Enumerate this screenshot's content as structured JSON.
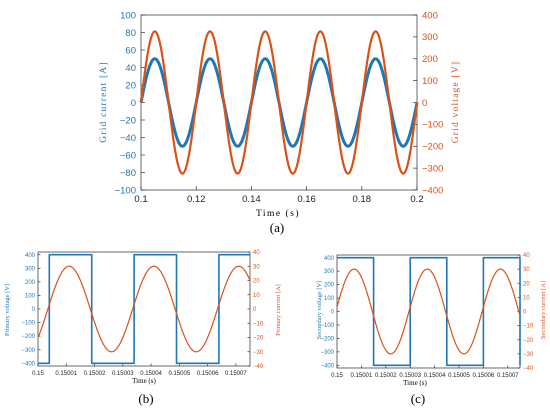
{
  "colors": {
    "current": "#1f77b4",
    "voltage": "#d95319",
    "axis": "#333333",
    "frame": "#444444"
  },
  "chart_data": [
    {
      "panel": "(a)",
      "type": "line",
      "xlabel": "Time (s)",
      "ylabel_left": "Grid current [A]",
      "ylabel_right": "Grid voltage [V]",
      "xlim": [
        0.1,
        0.2
      ],
      "ylim_left": [
        -100,
        100
      ],
      "ylim_right": [
        -400,
        400
      ],
      "xticks": [
        "0.1",
        "0.12",
        "0.14",
        "0.16",
        "0.18",
        "0.2"
      ],
      "yticks_left": [
        "100",
        "80",
        "60",
        "40",
        "20",
        "0",
        "−20",
        "−40",
        "−60",
        "−80",
        "−100"
      ],
      "yticks_right": [
        "400",
        "300",
        "200",
        "100",
        "0",
        "−100",
        "−200",
        "−300",
        "−400"
      ],
      "series": [
        {
          "axis": "left",
          "shape": "sine",
          "amplitude": 50,
          "frequency_hz": 50,
          "x_start": 0.1,
          "x_end": 0.2,
          "color": "#1f77b4"
        },
        {
          "axis": "right",
          "shape": "sine",
          "amplitude": 325,
          "frequency_hz": 50,
          "x_start": 0.1,
          "x_end": 0.2,
          "color": "#d95319"
        }
      ]
    },
    {
      "panel": "(b)",
      "type": "line",
      "xlabel": "Time (s)",
      "ylabel_left": "Primary voltage [V]",
      "ylabel_right": "Primary current [A]",
      "xlim": [
        0.15,
        0.150075
      ],
      "ylim_left": [
        -420,
        420
      ],
      "ylim_right": [
        -40,
        40
      ],
      "xticks": [
        "0.15",
        "0.15001",
        "0.15002",
        "0.15003",
        "0.15004",
        "0.15005",
        "0.15006",
        "0.15007"
      ],
      "yticks_left": [
        "400",
        "300",
        "200",
        "100",
        "0",
        "−100",
        "−200",
        "−300",
        "−400"
      ],
      "yticks_right": [
        "40",
        "30",
        "20",
        "10",
        "0",
        "−10",
        "−20",
        "−30",
        "−40"
      ],
      "series": [
        {
          "axis": "left",
          "shape": "square",
          "amplitude": 400,
          "period": 3e-05,
          "rise_at": 0.150004,
          "x_start": 0.15,
          "x_end": 0.150075,
          "color": "#1f77b4"
        },
        {
          "axis": "right",
          "shape": "sine",
          "amplitude": 30,
          "period": 3e-05,
          "peak_at": 0.150011,
          "x_start": 0.15,
          "x_end": 0.150075,
          "color": "#d95319"
        }
      ]
    },
    {
      "panel": "(c)",
      "type": "line",
      "xlabel": "Time (s)",
      "ylabel_left": "Secondary voltage [V]",
      "ylabel_right": "Secondary current [A]",
      "xlim": [
        0.15,
        0.150075
      ],
      "ylim_left": [
        -420,
        420
      ],
      "ylim_right": [
        -40,
        40
      ],
      "xticks": [
        "0.15",
        "0.15001",
        "0.15002",
        "0.15003",
        "0.15004",
        "0.15005",
        "0.15006",
        "0.15007"
      ],
      "yticks_left": [
        "400",
        "300",
        "200",
        "100",
        "0",
        "−100",
        "−200",
        "−300",
        "−400"
      ],
      "yticks_right": [
        "40",
        "30",
        "20",
        "10",
        "0",
        "−10",
        "−20",
        "−30",
        "−40"
      ],
      "series": [
        {
          "axis": "left",
          "shape": "square",
          "amplitude": 400,
          "period": 3e-05,
          "rise_at": 0.15,
          "x_start": 0.15,
          "x_end": 0.150075,
          "color": "#1f77b4"
        },
        {
          "axis": "right",
          "shape": "sine",
          "amplitude": 30,
          "period": 3e-05,
          "peak_at": 0.150007,
          "x_start": 0.15,
          "x_end": 0.150075,
          "color": "#d95319"
        }
      ]
    }
  ]
}
